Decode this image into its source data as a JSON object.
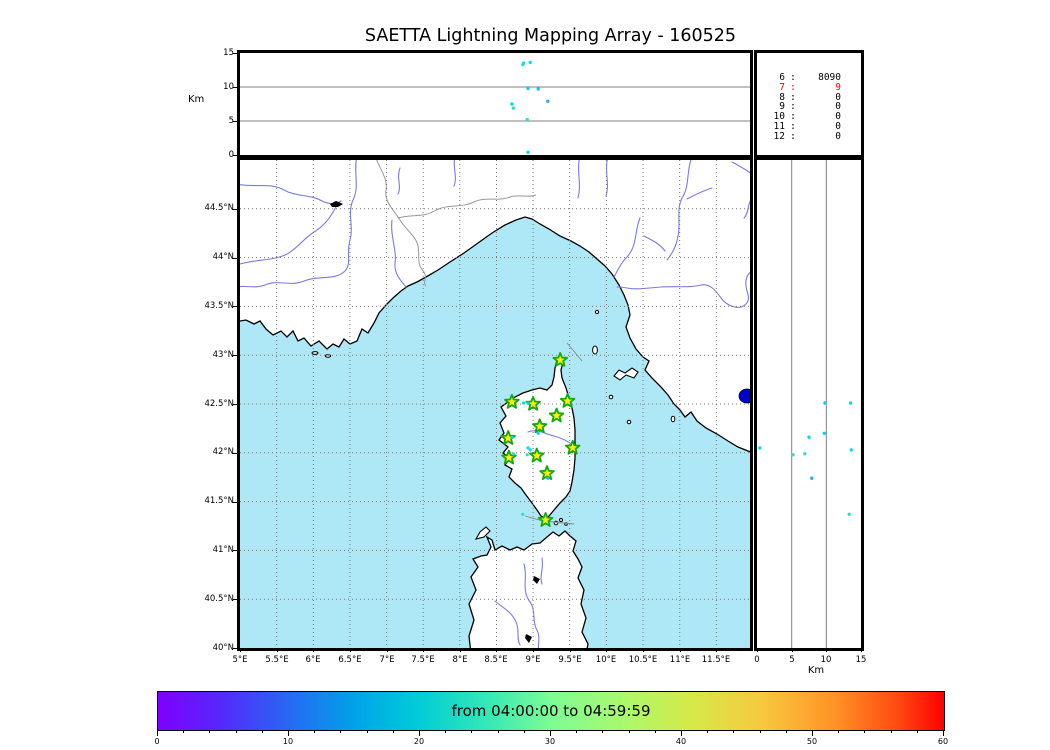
{
  "title": "SAETTA Lightning Mapping Array - 160525",
  "axes": {
    "alt_label": "Km",
    "alt_label_bottom": "Km",
    "alt_range": [
      0,
      15
    ],
    "alt_ticks": [
      0,
      5,
      10,
      15
    ],
    "alt_gridlines": [
      5,
      10
    ],
    "lon_range": [
      5,
      11.96
    ],
    "lon_ticks": [
      {
        "value": 5,
        "label": "5°E"
      },
      {
        "value": 5.5,
        "label": "5.5°E"
      },
      {
        "value": 6,
        "label": "6°E"
      },
      {
        "value": 6.5,
        "label": "6.5°E"
      },
      {
        "value": 7,
        "label": "7°E"
      },
      {
        "value": 7.5,
        "label": "7.5°E"
      },
      {
        "value": 8,
        "label": "8°E"
      },
      {
        "value": 8.5,
        "label": "8.5°E"
      },
      {
        "value": 9,
        "label": "9°E"
      },
      {
        "value": 9.5,
        "label": "9.5°E"
      },
      {
        "value": 10,
        "label": "10°E"
      },
      {
        "value": 10.5,
        "label": "10.5°E"
      },
      {
        "value": 11,
        "label": "11°E"
      },
      {
        "value": 11.5,
        "label": "11.5°E"
      }
    ],
    "lat_range": [
      40,
      45
    ],
    "lat_ticks": [
      {
        "value": 40,
        "label": "40°N"
      },
      {
        "value": 40.5,
        "label": "40.5°N"
      },
      {
        "value": 41,
        "label": "41°N"
      },
      {
        "value": 41.5,
        "label": "41.5°N"
      },
      {
        "value": 42,
        "label": "42°N"
      },
      {
        "value": 42.5,
        "label": "42.5°N"
      },
      {
        "value": 43,
        "label": "43°N"
      },
      {
        "value": 43.5,
        "label": "43.5°N"
      },
      {
        "value": 44,
        "label": "44°N"
      },
      {
        "value": 44.5,
        "label": "44.5°N"
      }
    ],
    "grid_interval_deg": 0.5
  },
  "legend": {
    "rows": [
      {
        "stations": "6",
        "count": "8090",
        "highlighted": false
      },
      {
        "stations": "7",
        "count": "9",
        "highlighted": true
      },
      {
        "stations": "8",
        "count": "0",
        "highlighted": false
      },
      {
        "stations": "9",
        "count": "0",
        "highlighted": false
      },
      {
        "stations": "10",
        "count": "0",
        "highlighted": false
      },
      {
        "stations": "11",
        "count": "0",
        "highlighted": false
      },
      {
        "stations": "12",
        "count": "0",
        "highlighted": false
      }
    ]
  },
  "colorbar": {
    "label": "from 04:00:00 to 04:59:59",
    "range": [
      0,
      60
    ],
    "ticks": [
      0,
      10,
      20,
      30,
      40,
      50,
      60
    ],
    "minor_tick_step": 2,
    "colormap": "rainbow"
  },
  "colors": {
    "sea": "#aee7f6",
    "land": "#ffffff",
    "coast": "#000000",
    "river": "#7b7be0",
    "admin_border": "#999999",
    "lake_blue": "#0000cc",
    "lake_dark": "#000000",
    "grid_map": "#777777",
    "grid_panel": "#808080",
    "station_fill": "#ffef00",
    "station_stroke": "#12a812",
    "highlight_red": "#ff0000",
    "source_cyan": "#00e0ee"
  },
  "chart_data": {
    "type": "scatter",
    "title": "SAETTA Lightning Mapping Array - 160525",
    "panels": {
      "top": {
        "x": "longitude_deg_E",
        "y": "altitude_km",
        "xlim": [
          5,
          11.96
        ],
        "ylim": [
          0,
          15
        ],
        "yticks": [
          0,
          5,
          10,
          15
        ],
        "ylabel": "Km",
        "grid": "solid horizontal at 5 and 10 km"
      },
      "map": {
        "x": "longitude_deg_E",
        "y": "latitude_deg_N",
        "xlim": [
          5,
          11.96
        ],
        "ylim": [
          40,
          45
        ],
        "grid": "dotted every 0.5 deg",
        "region": "Corsica, Ligurian Sea, Provence, Tuscany, northern Sardinia"
      },
      "right": {
        "x": "altitude_km",
        "y": "latitude_deg_N",
        "xlim": [
          0,
          15
        ],
        "ylim": [
          40,
          45
        ],
        "xticks": [
          0,
          5,
          10,
          15
        ],
        "xlabel": "Km",
        "grid": "solid vertical at 5 and 10 km"
      }
    },
    "stations_lon_lat": [
      [
        9.37,
        42.95
      ],
      [
        8.71,
        42.52
      ],
      [
        9.0,
        42.5
      ],
      [
        9.47,
        42.53
      ],
      [
        9.32,
        42.38
      ],
      [
        9.09,
        42.27
      ],
      [
        8.66,
        42.15
      ],
      [
        9.54,
        42.05
      ],
      [
        9.05,
        41.97
      ],
      [
        8.67,
        41.95
      ],
      [
        9.19,
        41.79
      ],
      [
        9.17,
        41.31
      ]
    ],
    "sources": [
      {
        "lon": 8.87,
        "lat": 42.51,
        "alt_km": 13.5,
        "color": "#00e0f4"
      },
      {
        "lon": 8.96,
        "lat": 42.03,
        "alt_km": 13.6,
        "color": "#00e0f4"
      },
      {
        "lon": 8.93,
        "lat": 42.51,
        "alt_km": 9.8,
        "color": "#00d2f6"
      },
      {
        "lon": 9.07,
        "lat": 42.2,
        "alt_km": 9.7,
        "color": "#00d2f6"
      },
      {
        "lon": 9.2,
        "lat": 41.74,
        "alt_km": 7.9,
        "color": "#2fa8f0"
      },
      {
        "lon": 8.71,
        "lat": 42.16,
        "alt_km": 7.5,
        "color": "#00dce8"
      },
      {
        "lon": 8.73,
        "lat": 41.99,
        "alt_km": 6.9,
        "color": "#34d8d0"
      },
      {
        "lon": 8.92,
        "lat": 41.98,
        "alt_km": 5.2,
        "color": "#3cd8cc"
      },
      {
        "lon": 8.93,
        "lat": 42.05,
        "alt_km": 0.4,
        "color": "#00e0dc"
      },
      {
        "lon": 8.86,
        "lat": 41.37,
        "alt_km": 13.3,
        "color": "#2fe0c0"
      }
    ],
    "station_count_histogram": [
      [
        "6",
        8090
      ],
      [
        "7",
        9
      ],
      [
        "8",
        0
      ],
      [
        "9",
        0
      ],
      [
        "10",
        0
      ],
      [
        "11",
        0
      ],
      [
        "12",
        0
      ]
    ]
  }
}
